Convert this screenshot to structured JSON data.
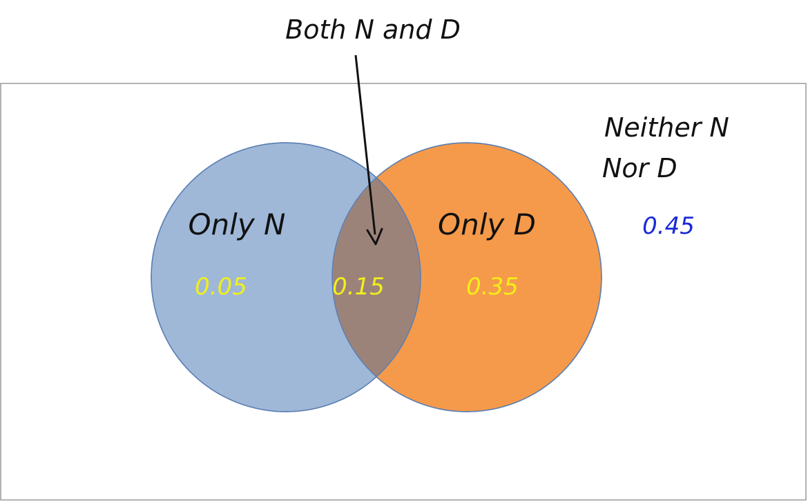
{
  "diagram": {
    "callout_label": "Both N and D",
    "neither_label_line1": "Neither N",
    "neither_label_line2": "Nor D",
    "neither_value": "0.45",
    "set_n": {
      "region_label": "Only N",
      "only_value": "0.05",
      "fill_color": "#9fb8d8",
      "stroke_color": "#5b7fb3"
    },
    "set_d": {
      "region_label": "Only D",
      "only_value": "0.35",
      "fill_color": "#f59a4a",
      "stroke_color": "#5b7fb3"
    },
    "intersection": {
      "value": "0.15",
      "fill_color": "#9c837a"
    },
    "colors": {
      "region_value_text": "#f2ef1a",
      "neither_value_text": "#1a2ad8",
      "label_text": "#111111",
      "frame": "#999999"
    }
  }
}
